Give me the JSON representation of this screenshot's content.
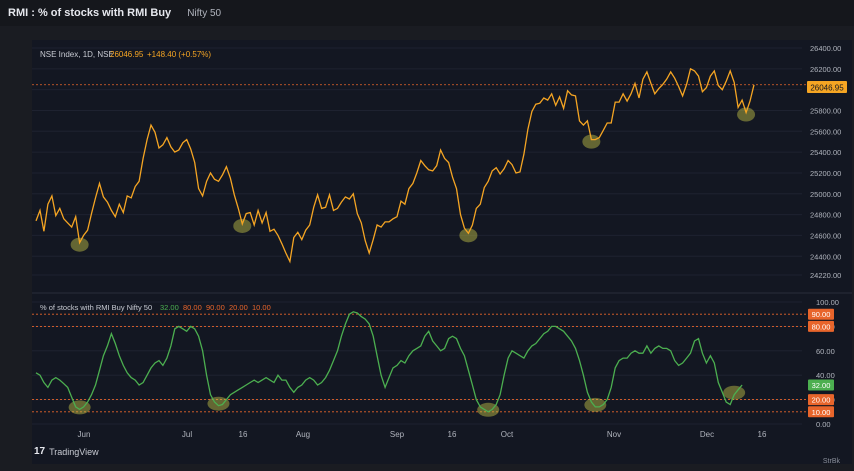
{
  "header": {
    "title": "RMI : % of stocks with RMI Buy",
    "symbol": "Nifty 50"
  },
  "footer": {
    "brand_logo": "17",
    "brand": "TradingView",
    "watermark": "StrBk"
  },
  "colors": {
    "price_line": "#f5a523",
    "indicator_line": "#4caf50",
    "level_line": "#e8652b",
    "highlight": "#c8c84a",
    "background": "#131722"
  },
  "chart_data": [
    {
      "type": "line",
      "legend": {
        "name": "NSE Index, 1D, NSE",
        "last": "26046.95",
        "change": "+148.40 (+0.57%)"
      },
      "price_label": "26046.95",
      "ylim": [
        24220,
        26400
      ],
      "y_ticks": [
        "26400.00",
        "26200.00",
        "26000.00",
        "25800.00",
        "25600.00",
        "25400.00",
        "25200.00",
        "25000.00",
        "24800.00",
        "24600.00",
        "24400.00",
        "24220.00"
      ],
      "x_ticks": [
        "Jun",
        "Jul",
        "16",
        "Aug",
        "Sep",
        "16",
        "Oct",
        "Nov",
        "Dec",
        "16"
      ],
      "series": [
        {
          "values": [
            24740,
            24840,
            24640,
            24900,
            24980,
            24790,
            24860,
            24760,
            24720,
            24680,
            24780,
            24530,
            24600,
            24650,
            24810,
            24960,
            25100,
            24970,
            24920,
            24840,
            24780,
            24900,
            24820,
            24980,
            24960,
            25070,
            25120,
            25340,
            25520,
            25660,
            25590,
            25440,
            25470,
            25540,
            25450,
            25400,
            25420,
            25490,
            25520,
            25430,
            25300,
            25050,
            24980,
            25120,
            25200,
            25140,
            25120,
            25180,
            25260,
            25150,
            24990,
            24860,
            24710,
            24810,
            24820,
            24700,
            24840,
            24720,
            24820,
            24640,
            24660,
            24600,
            24520,
            24430,
            24350,
            24580,
            24630,
            24560,
            24650,
            24700,
            24870,
            24990,
            24860,
            24870,
            24990,
            24840,
            24860,
            24920,
            24970,
            24950,
            25000,
            24810,
            24720,
            24550,
            24430,
            24560,
            24700,
            24680,
            24730,
            24730,
            24760,
            24780,
            24930,
            24900,
            25050,
            25100,
            25200,
            25320,
            25270,
            25230,
            25220,
            25270,
            25420,
            25340,
            25300,
            25160,
            25050,
            24800,
            24670,
            24620,
            24700,
            24860,
            24900,
            25060,
            25120,
            25220,
            25250,
            25190,
            25240,
            25320,
            25280,
            25200,
            25210,
            25380,
            25620,
            25790,
            25860,
            25870,
            25920,
            25900,
            25960,
            25850,
            25930,
            25820,
            25990,
            25950,
            25940,
            25700,
            25660,
            25700,
            25520,
            25520,
            25540,
            25610,
            25680,
            25680,
            25880,
            25880,
            25960,
            25890,
            25960,
            26060,
            25920,
            26100,
            26170,
            26060,
            25960,
            26010,
            26050,
            26100,
            26170,
            26110,
            26030,
            25940,
            26050,
            26200,
            26180,
            26130,
            25980,
            26020,
            26130,
            26180,
            26040,
            26000,
            26080,
            26180,
            26070,
            25830,
            25900,
            25780,
            25890,
            26046.95
          ]
        }
      ]
    },
    {
      "type": "line",
      "legend": {
        "name": "% of stocks with RMI Buy Nifty 50",
        "values": [
          "32.00",
          "80.00",
          "90.00",
          "20.00",
          "10.00"
        ]
      },
      "ylim": [
        0,
        100
      ],
      "y_ticks": [
        "100.00",
        "80.00",
        "60.00",
        "40.00",
        "20.00",
        "0.00"
      ],
      "level_labels": [
        "90.00",
        "80.00",
        "32.00",
        "20.00",
        "10.00"
      ],
      "levels": [
        90,
        80,
        20,
        10
      ],
      "series": [
        {
          "values": [
            42,
            40,
            34,
            30,
            36,
            38,
            36,
            33,
            30,
            22,
            14,
            12,
            14,
            18,
            24,
            32,
            44,
            56,
            64,
            74,
            66,
            56,
            48,
            42,
            38,
            36,
            32,
            34,
            40,
            46,
            50,
            52,
            48,
            54,
            64,
            78,
            80,
            78,
            76,
            80,
            78,
            72,
            60,
            40,
            24,
            18,
            15,
            16,
            20,
            24,
            26,
            28,
            30,
            32,
            34,
            36,
            34,
            36,
            38,
            36,
            34,
            40,
            36,
            36,
            30,
            26,
            30,
            32,
            36,
            38,
            36,
            32,
            34,
            38,
            44,
            52,
            60,
            72,
            82,
            90,
            92,
            91,
            88,
            86,
            82,
            72,
            56,
            40,
            30,
            38,
            46,
            48,
            52,
            50,
            56,
            60,
            62,
            64,
            72,
            76,
            68,
            64,
            60,
            62,
            70,
            72,
            70,
            62,
            56,
            44,
            32,
            20,
            14,
            12,
            10,
            12,
            16,
            24,
            40,
            54,
            60,
            58,
            56,
            54,
            60,
            64,
            66,
            70,
            74,
            76,
            80,
            80,
            78,
            76,
            72,
            68,
            62,
            52,
            40,
            26,
            18,
            14,
            14,
            16,
            20,
            30,
            46,
            52,
            54,
            54,
            58,
            60,
            58,
            58,
            64,
            58,
            62,
            64,
            62,
            62,
            60,
            52,
            48,
            50,
            54,
            58,
            68,
            70,
            58,
            50,
            56,
            50,
            34,
            26,
            18,
            16,
            24,
            28,
            32
          ]
        }
      ]
    }
  ]
}
